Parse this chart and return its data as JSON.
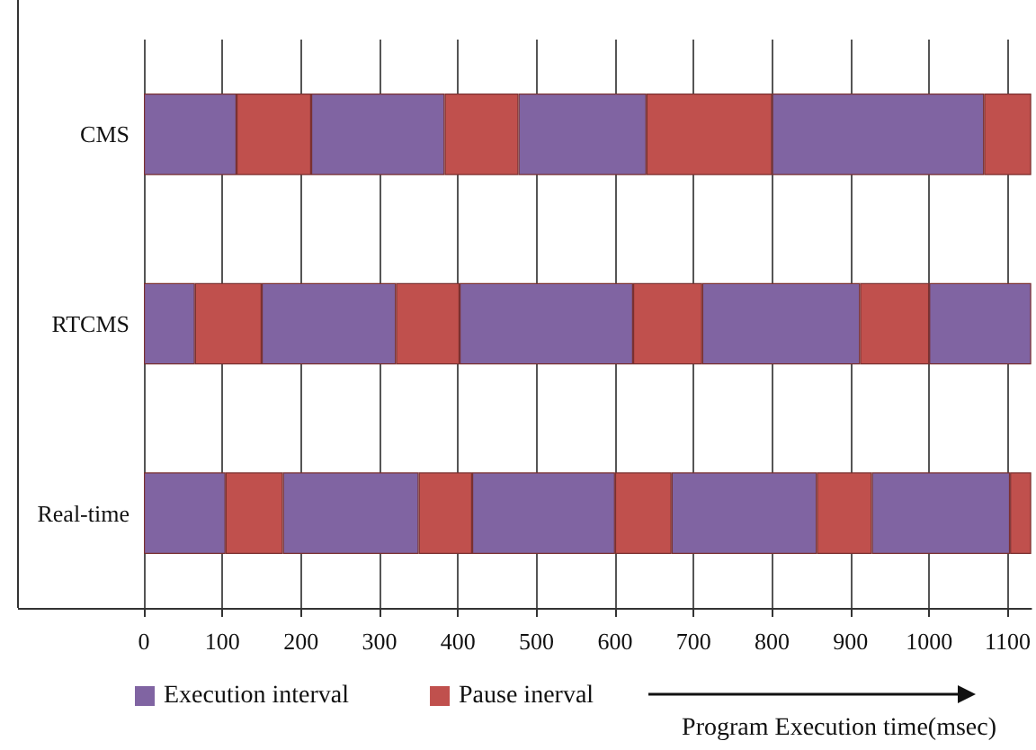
{
  "chart_data": {
    "type": "bar",
    "orientation": "horizontal",
    "stacked": true,
    "categories": [
      "CMS",
      "RTCMS",
      "Real-time"
    ],
    "xlabel": "Program Execution time(msec)",
    "xlim": [
      0,
      1130
    ],
    "xticks": [
      0,
      100,
      200,
      300,
      400,
      500,
      600,
      700,
      800,
      900,
      1000,
      1100
    ],
    "grid": "x",
    "legend": "bottom left",
    "series": [
      {
        "name": "Execution interval",
        "color": "#8064a2",
        "values": [
          118,
          65,
          104
        ]
      },
      {
        "name": "Pause inerval",
        "color": "#c0504d",
        "values": [
          95,
          85,
          73
        ]
      },
      {
        "color": "#8064a2",
        "values": [
          170,
          171,
          173
        ]
      },
      {
        "color": "#c0504d",
        "values": [
          94,
          81,
          68
        ]
      },
      {
        "color": "#8064a2",
        "values": [
          163,
          221,
          182
        ]
      },
      {
        "color": "#c0504d",
        "values": [
          160,
          88,
          72
        ]
      },
      {
        "color": "#8064a2",
        "values": [
          270,
          201,
          185
        ]
      },
      {
        "color": "#c0504d",
        "values": [
          60,
          88,
          70
        ]
      },
      {
        "color": "#8064a2",
        "values": [
          null,
          130,
          176
        ]
      },
      {
        "color": "#c0504d",
        "values": [
          null,
          null,
          27
        ]
      }
    ]
  }
}
